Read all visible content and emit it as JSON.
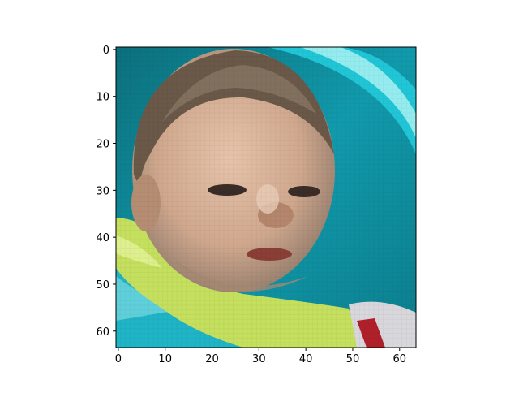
{
  "chart_data": {
    "type": "heatmap",
    "title": "",
    "xlabel": "",
    "ylabel": "",
    "image_size": [
      64,
      64
    ],
    "xlim": [
      -0.5,
      63.5
    ],
    "ylim": [
      63.5,
      -0.5
    ],
    "x_ticks": [
      0,
      10,
      20,
      30,
      40,
      50,
      60
    ],
    "y_ticks": [
      0,
      10,
      20,
      30,
      40,
      50,
      60
    ],
    "x_tick_labels": [
      "0",
      "10",
      "20",
      "30",
      "40",
      "50",
      "60"
    ],
    "y_tick_labels": [
      "0",
      "10",
      "20",
      "30",
      "40",
      "50",
      "60"
    ],
    "image_subject": "baby-face",
    "colors": {
      "frame": "#000000",
      "teal_bg": "#0a8a9a",
      "teal_light": "#19c4d4",
      "highlight": "#9cf0f0",
      "skin": "#d9b49c",
      "skin_shadow": "#a98a72",
      "hair": "#5b4a3c",
      "shirt": "#c8e060",
      "red": "#b0202a"
    }
  }
}
